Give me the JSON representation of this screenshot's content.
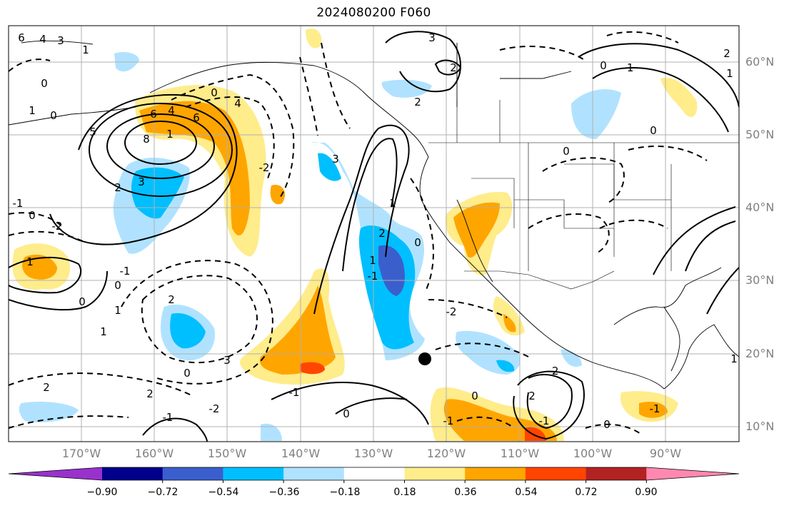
{
  "title": "2024080200 F060",
  "map": {
    "projection": "equirectangular",
    "lon_range": [
      "180°W",
      "80°W"
    ],
    "lat_range": [
      "8°N",
      "65°N"
    ],
    "gridlines": true,
    "marker": "black dot near 122°W, 19°N",
    "contours": "solid positive / dashed negative, labeled -2..8"
  },
  "lon_labels": [
    "170°W",
    "160°W",
    "150°W",
    "140°W",
    "130°W",
    "120°W",
    "110°W",
    "100°W",
    "90°W"
  ],
  "lat_labels": [
    "60°N",
    "50°N",
    "40°N",
    "30°N",
    "20°N",
    "10°N"
  ],
  "colorbar": {
    "labels": [
      "−0.90",
      "−0.72",
      "−0.54",
      "−0.36",
      "−0.18",
      "0.18",
      "0.36",
      "0.54",
      "0.72",
      "0.90"
    ],
    "colors": [
      "#9932cc",
      "#00008b",
      "#3a5fcd",
      "#00bfff",
      "#b0e2ff",
      "#ffffff",
      "#ffec8b",
      "#ffa500",
      "#ff4500",
      "#b22222",
      "#ff88b0"
    ]
  },
  "contour_labels": [
    "6",
    "4",
    "3",
    "1",
    "0",
    "1",
    "0",
    "5",
    "4",
    "6",
    "8",
    "3",
    "2",
    "-2",
    "-1",
    "0",
    "-2",
    "-1",
    "0",
    "1",
    "1",
    "0",
    "1",
    "2",
    "3",
    "0",
    "2",
    "2",
    "-2",
    "-1",
    "-1",
    "0",
    "1",
    "-1",
    "1",
    "3",
    "2",
    "2",
    "3",
    "2",
    "0",
    "-2",
    "-1",
    "2",
    "-2",
    "0",
    "-1",
    "0",
    "-1",
    "0",
    "1",
    "2",
    "1",
    "0",
    "-1",
    "0",
    "1",
    "2",
    "0",
    "-1",
    "-2",
    "4",
    "0",
    "6",
    "1"
  ]
}
